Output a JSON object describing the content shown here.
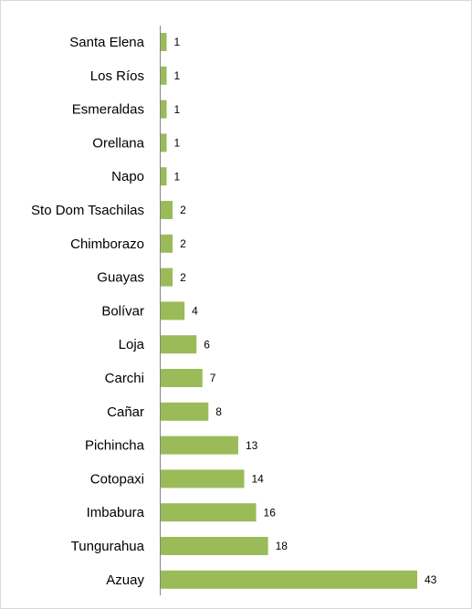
{
  "chart_data": {
    "type": "bar",
    "orientation": "horizontal",
    "categories": [
      "Santa Elena",
      "Los Ríos",
      "Esmeraldas",
      "Orellana",
      "Napo",
      "Sto Dom Tsachilas",
      "Chimborazo",
      "Guayas",
      "Bolívar",
      "Loja",
      "Carchi",
      "Cañar",
      "Pichincha",
      "Cotopaxi",
      "Imbabura",
      "Tungurahua",
      "Azuay"
    ],
    "values": [
      1,
      1,
      1,
      1,
      1,
      2,
      2,
      2,
      4,
      6,
      7,
      8,
      13,
      14,
      16,
      18,
      43
    ],
    "color": "#9bbb59"
  }
}
